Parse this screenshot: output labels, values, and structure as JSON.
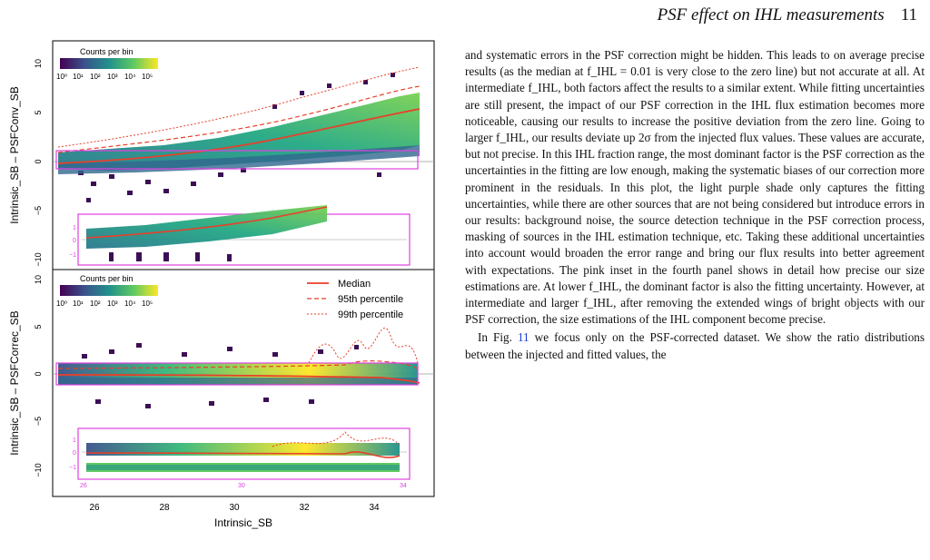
{
  "header": {
    "title": "PSF effect on IHL measurements",
    "page_number": "11"
  },
  "figure": {
    "top_panel": {
      "ylabel": "Intrinsic_SB – PSFConv_SB",
      "colorbar_title": "Counts per bin",
      "colorbar_ticks": [
        "10⁰",
        "10¹",
        "10²",
        "10³",
        "10⁴",
        "10⁵"
      ],
      "yticks": [
        "10",
        "5",
        "0",
        "−5",
        "−10"
      ],
      "inset_ticks": [
        "26",
        "30",
        "34"
      ],
      "inset_yticks": [
        "1",
        "0",
        "−1"
      ]
    },
    "bottom_panel": {
      "ylabel": "Intrinsic_SB – PSFCorrec_SB",
      "colorbar_title": "Counts per bin",
      "colorbar_ticks": [
        "10⁰",
        "10¹",
        "10²",
        "10³",
        "10⁴",
        "10⁵"
      ],
      "yticks": [
        "10",
        "5",
        "0",
        "−5",
        "−10"
      ],
      "inset_ticks": [
        "26",
        "30",
        "34"
      ],
      "inset_yticks": [
        "1",
        "0",
        "−1"
      ],
      "legend": [
        "Median",
        "95th percentile",
        "99th percentile"
      ]
    },
    "xlabel": "Intrinsic_SB",
    "xticks": [
      "26",
      "28",
      "30",
      "32",
      "34"
    ],
    "colors": {
      "median": "#e8402a",
      "inset_box": "#e040e0",
      "zero_line": "#999999"
    }
  },
  "text": {
    "paragraph1": "and systematic errors in the PSF correction might be hidden. This leads to on average precise results (as the median at f_IHL = 0.01 is very close to the zero line) but not accurate at all. At intermediate f_IHL, both factors affect the results to a similar extent. While fitting uncertainties are still present, the impact of our PSF correction in the IHL flux estimation becomes more noticeable, causing our results to increase the positive deviation from the zero line. Going to larger f_IHL, our results deviate up 2σ from the injected flux values. These values are accurate, but not precise. In this IHL fraction range, the most dominant factor is the PSF correction as the uncertainties in the fitting are low enough, making the systematic biases of our correction more prominent in the residuals. In this plot, the light purple shade only captures the fitting uncertainties, while there are other sources that are not being considered but introduce errors in our results: background noise, the source detection technique in the PSF correction process, masking of sources in the IHL estimation technique, etc. Taking these additional uncertainties into account would broaden the error range and bring our flux results into better agreement with expectations. The pink inset in the fourth panel shows in detail how precise our size estimations are. At lower f_IHL, the dominant factor is also the fitting uncertainty. However, at intermediate and larger f_IHL, after removing the extended wings of bright objects with our PSF correction, the size estimations of the IHL component become precise.",
    "paragraph2_prefix": "In Fig.",
    "paragraph2_ref": "11",
    "paragraph2_suffix": "we focus only on the PSF-corrected dataset. We show the ratio distributions between the injected and fitted values, the"
  }
}
